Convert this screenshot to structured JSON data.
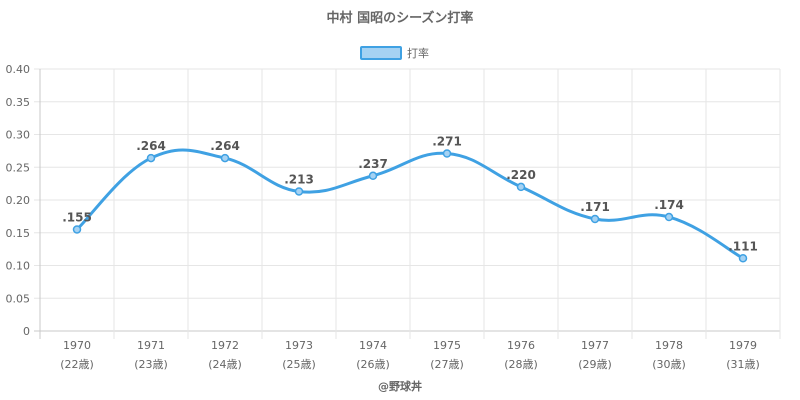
{
  "chart_data": {
    "type": "line",
    "title": "中村 国昭のシーズン打率",
    "legend": {
      "label": "打率",
      "position": "top"
    },
    "categories": [
      "1970",
      "1971",
      "1972",
      "1973",
      "1974",
      "1975",
      "1976",
      "1977",
      "1978",
      "1979"
    ],
    "category_sublabels": [
      "(22歳)",
      "(23歳)",
      "(24歳)",
      "(25歳)",
      "(26歳)",
      "(27歳)",
      "(28歳)",
      "(29歳)",
      "(30歳)",
      "(31歳)"
    ],
    "series": [
      {
        "name": "打率",
        "values": [
          0.155,
          0.264,
          0.264,
          0.213,
          0.237,
          0.271,
          0.22,
          0.171,
          0.174,
          0.111
        ],
        "data_labels": [
          ".155",
          ".264",
          ".264",
          ".213",
          ".237",
          ".271",
          ".220",
          ".171",
          ".174",
          ".111"
        ],
        "color": "#3fa1e3"
      }
    ],
    "ylim": [
      0,
      0.4
    ],
    "y_ticks": [
      "0",
      "0.05",
      "0.10",
      "0.15",
      "0.20",
      "0.25",
      "0.30",
      "0.35",
      "0.40"
    ],
    "grid": true
  },
  "footer": "@野球丼",
  "colors": {
    "line": "#3fa1e3",
    "legend_fill": "#a5d2f3",
    "grid": "#e6e6e6",
    "axis": "#c8c8c8",
    "text": "#666666"
  }
}
